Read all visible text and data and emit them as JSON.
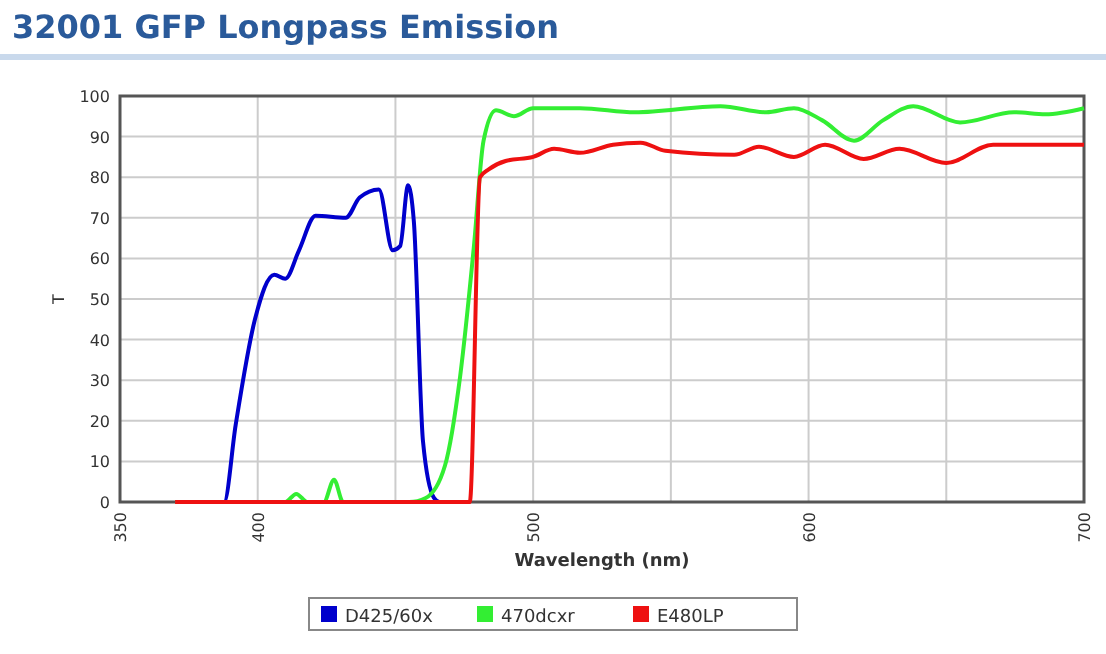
{
  "chart_data": {
    "type": "line",
    "title": "32001 GFP Longpass Emission",
    "xlabel": "Wavelength (nm)",
    "ylabel": "T",
    "xlim": [
      350,
      700
    ],
    "ylim": [
      0,
      100
    ],
    "xticks": [
      350,
      400,
      {
        "value": 450,
        "label": null
      },
      500,
      {
        "value": 550,
        "label": null
      },
      600,
      {
        "value": 650,
        "label": null
      },
      700
    ],
    "yticks": [
      0,
      10,
      20,
      30,
      40,
      50,
      60,
      70,
      80,
      90,
      100
    ],
    "grid": true,
    "legend": "bottom",
    "marker": "none",
    "line_style": "solid",
    "series": [
      {
        "name": "D425/60x",
        "color": "#0000cc",
        "x": [
          370,
          387.8,
          392,
          399,
          406,
          410,
          415,
          421,
          432,
          437,
          444,
          449,
          451.7,
          454.6,
          456.7,
          460,
          464,
          466,
          470
        ],
        "values": [
          0,
          0,
          19,
          45,
          56,
          55,
          62,
          70.5,
          70,
          75,
          77,
          62,
          63,
          78,
          69,
          15,
          1,
          0,
          0
        ]
      },
      {
        "name": "470dcxr",
        "color": "#33ee33",
        "x": [
          370,
          410,
          414,
          418,
          424,
          427.7,
          431,
          440,
          455,
          461,
          468,
          473.5,
          478.5,
          482,
          486.5,
          493,
          500,
          517,
          537,
          568,
          584.6,
          594.7,
          605,
          616.5,
          627,
          638,
          655,
          674.6,
          686,
          700
        ],
        "values": [
          0,
          0,
          2,
          0,
          0,
          5.5,
          0,
          0,
          0,
          1,
          9,
          31,
          63,
          89,
          96.5,
          95,
          97,
          97,
          96,
          97.5,
          96,
          97,
          94,
          89,
          94,
          97.5,
          93.5,
          96,
          95.5,
          97
        ]
      },
      {
        "name": "E480LP",
        "color": "#ee1111",
        "x": [
          370,
          476,
          477,
          480.7,
          484,
          490,
          500,
          507.6,
          517,
          529,
          539,
          548,
          573,
          582,
          594.7,
          606,
          620,
          633,
          650,
          667,
          700
        ],
        "values": [
          0,
          0,
          0,
          80,
          82,
          84,
          85,
          87,
          86,
          88,
          88.5,
          86.5,
          85.5,
          87.5,
          85,
          88,
          84.5,
          87,
          83.5,
          88,
          88
        ]
      }
    ]
  }
}
